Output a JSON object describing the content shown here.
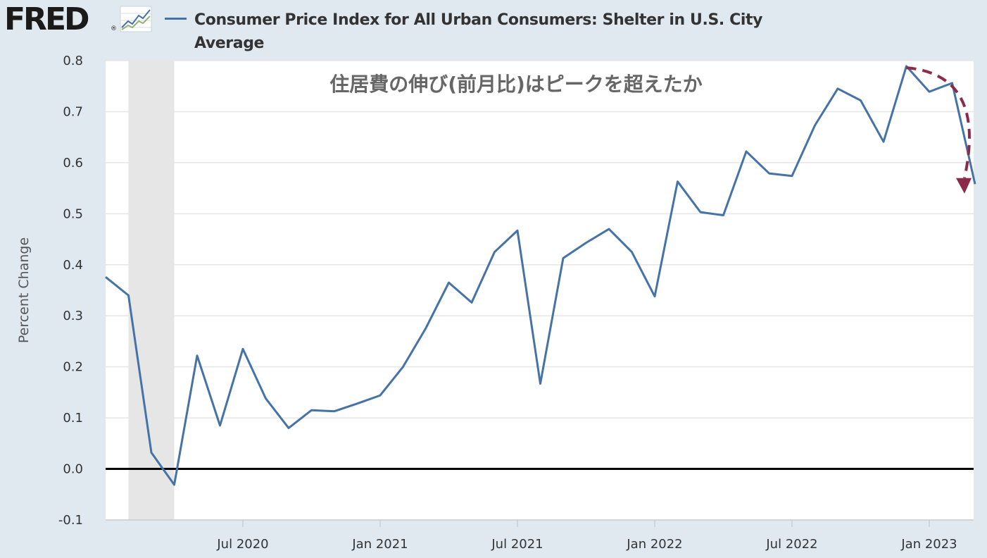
{
  "header": {
    "logo_text": "FRED",
    "logo_mark": "®",
    "logo_icon": "line-graph-icon",
    "series_title": "Consumer Price Index for All Urban Consumers: Shelter in U.S. City Average"
  },
  "colors": {
    "series": "#4572a7",
    "arrow": "#8b2a4a",
    "recession": "#e6e6e6",
    "background": "#e1e9f0",
    "plot": "#ffffff"
  },
  "chart_data": {
    "type": "line",
    "title": "",
    "annotation": "住居費の伸び(前月比)はピークを超えたか",
    "xlabel": "",
    "ylabel": "Percent Change",
    "x_ticks": [
      "Jul 2020",
      "Jan 2021",
      "Jul 2021",
      "Jan 2022",
      "Jul 2022",
      "Jan 2023"
    ],
    "y_ticks": [
      "0.8",
      "0.7",
      "0.6",
      "0.5",
      "0.4",
      "0.3",
      "0.2",
      "0.1",
      "0.0",
      "-0.1"
    ],
    "ylim": [
      -0.1,
      0.8
    ],
    "xlim": [
      "2020-01",
      "2023-03"
    ],
    "grid": true,
    "recession_shading": {
      "start": "2020-02",
      "end": "2020-04"
    },
    "series": [
      {
        "name": "Consumer Price Index for All Urban Consumers: Shelter in U.S. City Average",
        "x": [
          "2020-01",
          "2020-02",
          "2020-03",
          "2020-04",
          "2020-05",
          "2020-06",
          "2020-07",
          "2020-08",
          "2020-09",
          "2020-10",
          "2020-11",
          "2020-12",
          "2021-01",
          "2021-02",
          "2021-03",
          "2021-04",
          "2021-05",
          "2021-06",
          "2021-07",
          "2021-08",
          "2021-09",
          "2021-10",
          "2021-11",
          "2021-12",
          "2022-01",
          "2022-02",
          "2022-03",
          "2022-04",
          "2022-05",
          "2022-06",
          "2022-07",
          "2022-08",
          "2022-09",
          "2022-10",
          "2022-11",
          "2022-12",
          "2023-01",
          "2023-02",
          "2023-03"
        ],
        "values": [
          0.376,
          0.34,
          0.032,
          -0.031,
          0.222,
          0.085,
          0.235,
          0.138,
          0.08,
          0.115,
          0.113,
          0.128,
          0.144,
          0.2,
          0.276,
          0.365,
          0.326,
          0.425,
          0.467,
          0.167,
          0.413,
          0.443,
          0.47,
          0.425,
          0.338,
          0.563,
          0.503,
          0.497,
          0.622,
          0.579,
          0.574,
          0.673,
          0.745,
          0.722,
          0.641,
          0.789,
          0.739,
          0.756,
          0.558
        ]
      }
    ],
    "trend_arrow": {
      "from": {
        "x": "2022-12",
        "y": 0.786
      },
      "to": {
        "x": "2023-03",
        "y": 0.545
      }
    }
  }
}
